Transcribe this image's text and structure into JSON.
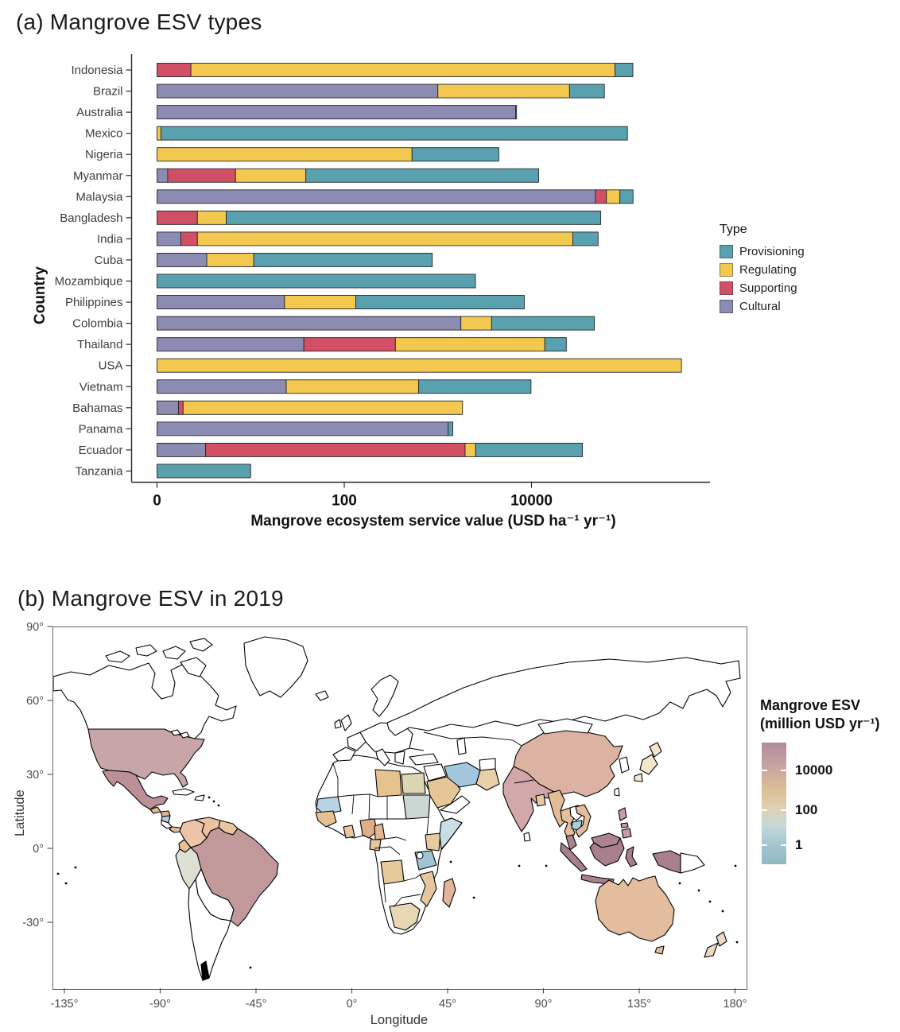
{
  "panel_a": {
    "title": "(a) Mangrove ESV types",
    "x_axis": {
      "label": "Mangrove ecosystem service value (USD ha⁻¹ yr⁻¹)",
      "ticks": [
        {
          "label": "0",
          "value": 0
        },
        {
          "label": "100",
          "value": 100
        },
        {
          "label": "10000",
          "value": 10000
        }
      ]
    },
    "y_axis": {
      "label": "Country"
    },
    "legend": {
      "title": "Type",
      "items": [
        {
          "label": "Provisioning",
          "color": "#5aa1b0"
        },
        {
          "label": "Regulating",
          "color": "#f2c84f"
        },
        {
          "label": "Supporting",
          "color": "#d15065"
        },
        {
          "label": "Cultural",
          "color": "#8c8bb2"
        }
      ]
    },
    "chart_data": {
      "type": "bar",
      "orientation": "horizontal",
      "stacked": true,
      "x_scale": "log10",
      "xlabel": "Mangrove ecosystem service value (USD ha⁻¹ yr⁻¹)",
      "ylabel": "Country",
      "x_ticks": [
        0,
        100,
        10000
      ],
      "categories": [
        "Indonesia",
        "Brazil",
        "Australia",
        "Mexico",
        "Nigeria",
        "Myanmar",
        "Malaysia",
        "Bangladesh",
        "India",
        "Cuba",
        "Mozambique",
        "Philippines",
        "Colombia",
        "Thailand",
        "USA",
        "Vietnam",
        "Bahamas",
        "Panama",
        "Ecuador",
        "Tanzania"
      ],
      "series": [
        {
          "name": "Cultural",
          "color": "#8c8bb2",
          "values": [
            0,
            1000,
            6760,
            0,
            0,
            1.3,
            48200,
            0,
            1.8,
            3.4,
            0,
            23,
            1760,
            37,
            0,
            24,
            1.7,
            1290,
            3.3,
            0
          ]
        },
        {
          "name": "Supporting",
          "color": "#d15065",
          "values": [
            2.3,
            0,
            0,
            0,
            0,
            5.6,
            14900,
            2.7,
            0.9,
            0,
            0,
            0,
            0,
            315,
            0,
            0,
            0.2,
            0,
            1950,
            0
          ]
        },
        {
          "name": "Regulating",
          "color": "#f2c84f",
          "values": [
            78000,
            24500,
            0,
            1.1,
            530,
            32,
            24900,
            2.8,
            27600,
            7.4,
            0,
            110,
            1990,
            13520,
            400000,
            600,
            1830,
            0,
            580,
            0
          ]
        },
        {
          "name": "Provisioning",
          "color": "#5aa1b0",
          "values": [
            43000,
            34600,
            150,
            106000,
            3950,
            11870,
            33600,
            54900,
            23900,
            860,
            2520,
            8240,
            43250,
            9680,
            0,
            9250,
            0,
            155,
            32500,
            10
          ]
        }
      ]
    }
  },
  "panel_b": {
    "title": "(b) Mangrove ESV in 2019",
    "x_axis": {
      "label": "Longitude",
      "ticks": [
        "-135°",
        "-90°",
        "-45°",
        "0°",
        "45°",
        "90°",
        "135°",
        "180°"
      ]
    },
    "y_axis": {
      "label": "Latitude",
      "ticks": [
        "90°",
        "60°",
        "30°",
        "0°",
        "-30°"
      ]
    },
    "legend": {
      "title_line1": "Mangrove ESV",
      "title_line2": "(million USD yr⁻¹)",
      "tick_labels": [
        "10000",
        "100",
        "1"
      ],
      "gradient_stops": [
        "#b18d99",
        "#c7a1a2",
        "#dcc096",
        "#ded2b3",
        "#c4d8da",
        "#a3c5cf",
        "#8fb9c4"
      ]
    },
    "map_data": {
      "fill_unmapped": "#ffffff",
      "colors": {
        "usa": "#c8a5a7",
        "mexico": "#bb9097",
        "guatemala": "#e0ba90",
        "honduras": "#dfb491",
        "nicaragua": "#aecde0",
        "panama": "#e3c09c",
        "colombia": "#ecc5a8",
        "venezuela": "#ecc2a0",
        "guianas": "#e8c79e",
        "ecuador": "#e5c09a",
        "peru": "#dcdfd2",
        "brazil": "#c2999b",
        "mauritania": "#b9d3e4",
        "senegal": "#e5c093",
        "ghana": "#e6c99e",
        "nigeria": "#dfae87",
        "cameroon": "#e2b692",
        "gabon": "#e6c89e",
        "angola": "#e7ca99",
        "south_africa": "#e7d7b5",
        "mozambique": "#e5c69e",
        "tanzania": "#9fc2d4",
        "kenya": "#e6caa0",
        "somalia": "#cadde2",
        "sudan": "#ccd7d3",
        "egypt": "#dcd5b2",
        "libya": "#e6c28e",
        "madagascar": "#e2b49c",
        "saudi_arabia": "#e6c697",
        "iran": "#a2c7dd",
        "pakistan": "#ead0a8",
        "india": "#d2a7a9",
        "bangladesh": "#e8c9a4",
        "china": "#dcb2a2",
        "myanmar": "#e3bb97",
        "thailand": "#e4bf9e",
        "cambodia": "#a8cede",
        "vietnam": "#e2bc9b",
        "malaysia": "#aa8490",
        "indonesia": "#a8808c",
        "philippines": "#c39da9",
        "australia": "#e3bd9d",
        "new_zealand": "#ecd9c0",
        "japan": "#f2e6cd"
      }
    }
  }
}
